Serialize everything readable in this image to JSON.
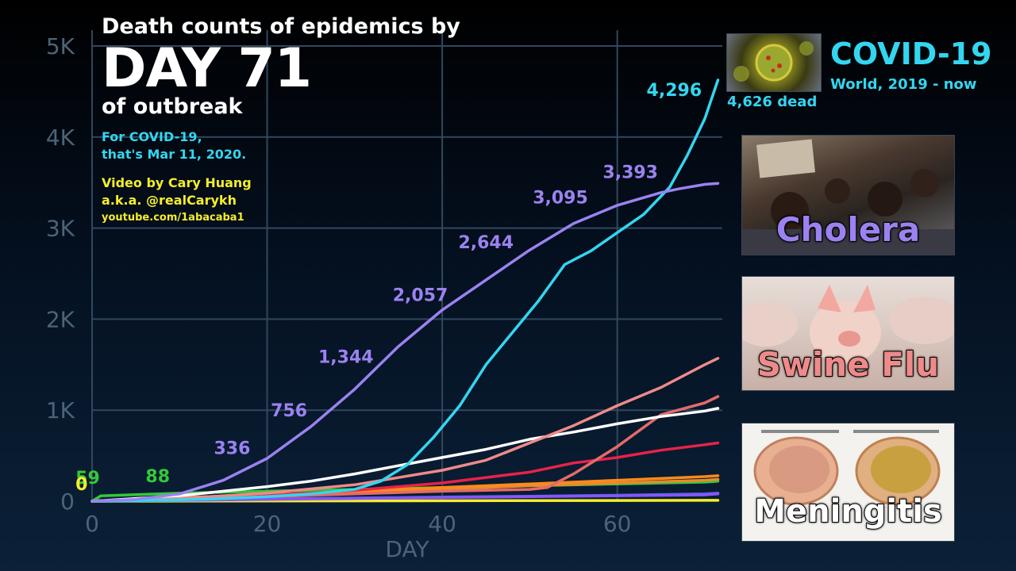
{
  "header": {
    "line1": "Death counts of epidemics by",
    "day": "DAY 71",
    "line3": "of outbreak",
    "note1": "For COVID-19,",
    "note2": "that's Mar 11, 2020.",
    "credit1": "Video by Cary Huang",
    "credit2": "a.k.a. @realCarykh",
    "credit3": "youtube.com/1abacaba1"
  },
  "covid": {
    "name": "COVID-19",
    "sub": "World, 2019 - now",
    "dead": "4,626 dead"
  },
  "panels": [
    {
      "name": "Cholera",
      "color": "#9b82f0"
    },
    {
      "name": "Swine Flu",
      "color": "#ef8a8a"
    },
    {
      "name": "Meningitis",
      "color": "#ffffff"
    }
  ],
  "chart_data": {
    "type": "line",
    "xlabel": "DAY",
    "ylabel": "",
    "xlim": [
      0,
      72
    ],
    "ylim": [
      0,
      5000
    ],
    "xticks": [
      0,
      20,
      40,
      60
    ],
    "yticks": [
      {
        "v": 0,
        "t": "0"
      },
      {
        "v": 1000,
        "t": "1K"
      },
      {
        "v": 2000,
        "t": "2K"
      },
      {
        "v": 3000,
        "t": "3K"
      },
      {
        "v": 4000,
        "t": "4K"
      },
      {
        "v": 5000,
        "t": "5K"
      }
    ],
    "grid": true,
    "series": [
      {
        "name": "Cholera",
        "color": "#9b82f0",
        "x": [
          0,
          5,
          10,
          15,
          20,
          25,
          30,
          35,
          40,
          45,
          50,
          55,
          60,
          65,
          67,
          70,
          71.5
        ],
        "y": [
          0,
          20,
          80,
          230,
          470,
          820,
          1230,
          1700,
          2100,
          2430,
          2760,
          3050,
          3250,
          3390,
          3430,
          3480,
          3490
        ]
      },
      {
        "name": "COVID-19",
        "color": "#33d6f0",
        "x": [
          0,
          5,
          10,
          15,
          20,
          25,
          30,
          33,
          36,
          39,
          42,
          45,
          48,
          51,
          54,
          57,
          60,
          63,
          66,
          68,
          70,
          71.5
        ],
        "y": [
          0,
          5,
          15,
          30,
          50,
          80,
          130,
          220,
          400,
          700,
          1050,
          1500,
          1850,
          2200,
          2600,
          2750,
          2950,
          3150,
          3450,
          3800,
          4200,
          4626
        ]
      },
      {
        "name": "Swine Flu",
        "color": "#ef8a8a",
        "x": [
          0,
          10,
          20,
          30,
          40,
          45,
          50,
          55,
          60,
          65,
          70,
          71.5
        ],
        "y": [
          0,
          30,
          90,
          180,
          340,
          450,
          640,
          830,
          1050,
          1250,
          1500,
          1570
        ]
      },
      {
        "name": "Meningitis",
        "color": "#ffffff",
        "x": [
          0,
          5,
          10,
          15,
          20,
          25,
          30,
          35,
          40,
          45,
          50,
          55,
          60,
          65,
          70,
          71.5
        ],
        "y": [
          0,
          30,
          60,
          110,
          160,
          220,
          300,
          390,
          480,
          570,
          680,
          760,
          850,
          930,
          990,
          1020
        ]
      },
      {
        "name": "",
        "color": "#e56a6a",
        "x": [
          0,
          10,
          20,
          30,
          40,
          45,
          50,
          52,
          55,
          60,
          65,
          70,
          71.5
        ],
        "y": [
          0,
          20,
          50,
          80,
          110,
          120,
          130,
          150,
          300,
          600,
          950,
          1080,
          1150
        ]
      },
      {
        "name": "",
        "color": "#e8224a",
        "x": [
          0,
          10,
          20,
          30,
          40,
          50,
          55,
          60,
          65,
          70,
          71.5
        ],
        "y": [
          0,
          30,
          60,
          120,
          200,
          320,
          420,
          480,
          560,
          620,
          640
        ]
      },
      {
        "name": "",
        "color": "#ff8a1a",
        "x": [
          0,
          10,
          20,
          30,
          40,
          50,
          60,
          70,
          71.5
        ],
        "y": [
          0,
          40,
          70,
          110,
          150,
          190,
          230,
          270,
          280
        ]
      },
      {
        "name": "",
        "color": "#e88a30",
        "x": [
          0,
          10,
          20,
          30,
          40,
          50,
          60,
          70,
          71.5
        ],
        "y": [
          0,
          30,
          60,
          100,
          130,
          170,
          200,
          230,
          240
        ]
      },
      {
        "name": "",
        "color": "#34c83a",
        "x": [
          0,
          1,
          10,
          20,
          30,
          40,
          50,
          60,
          70,
          71.5
        ],
        "y": [
          0,
          59,
          88,
          110,
          130,
          150,
          170,
          190,
          210,
          220
        ]
      },
      {
        "name": "",
        "color": "#8855ff",
        "x": [
          0,
          10,
          20,
          30,
          40,
          50,
          60,
          70,
          71.5
        ],
        "y": [
          0,
          10,
          20,
          30,
          40,
          50,
          60,
          70,
          80
        ]
      },
      {
        "name": "",
        "color": "#4a6ad8",
        "x": [
          0,
          10,
          20,
          30,
          40,
          50,
          60,
          70,
          71.5
        ],
        "y": [
          0,
          15,
          25,
          35,
          45,
          55,
          65,
          80,
          90
        ]
      },
      {
        "name": "",
        "color": "#f4ee2a",
        "x": [
          0,
          71.5
        ],
        "y": [
          0,
          10
        ]
      }
    ],
    "labels": [
      {
        "text": "336",
        "x": 16,
        "y": 520,
        "color": "#9b82f0"
      },
      {
        "text": "756",
        "x": 22.5,
        "y": 930,
        "color": "#9b82f0"
      },
      {
        "text": "1,344",
        "x": 29,
        "y": 1520,
        "color": "#9b82f0"
      },
      {
        "text": "2,057",
        "x": 37.5,
        "y": 2200,
        "color": "#9b82f0"
      },
      {
        "text": "2,644",
        "x": 45,
        "y": 2780,
        "color": "#9b82f0"
      },
      {
        "text": "3,095",
        "x": 53.5,
        "y": 3270,
        "color": "#9b82f0"
      },
      {
        "text": "3,393",
        "x": 61.5,
        "y": 3550,
        "color": "#9b82f0"
      },
      {
        "text": "4,296",
        "x": 66.5,
        "y": 4450,
        "color": "#33d6f0"
      },
      {
        "text": "59",
        "x": -0.5,
        "y": 190,
        "color": "#34c83a"
      },
      {
        "text": "88",
        "x": 7.5,
        "y": 210,
        "color": "#34c83a"
      },
      {
        "text": "0",
        "x": -1.2,
        "y": 120,
        "color": "#f4ee2a"
      }
    ]
  }
}
